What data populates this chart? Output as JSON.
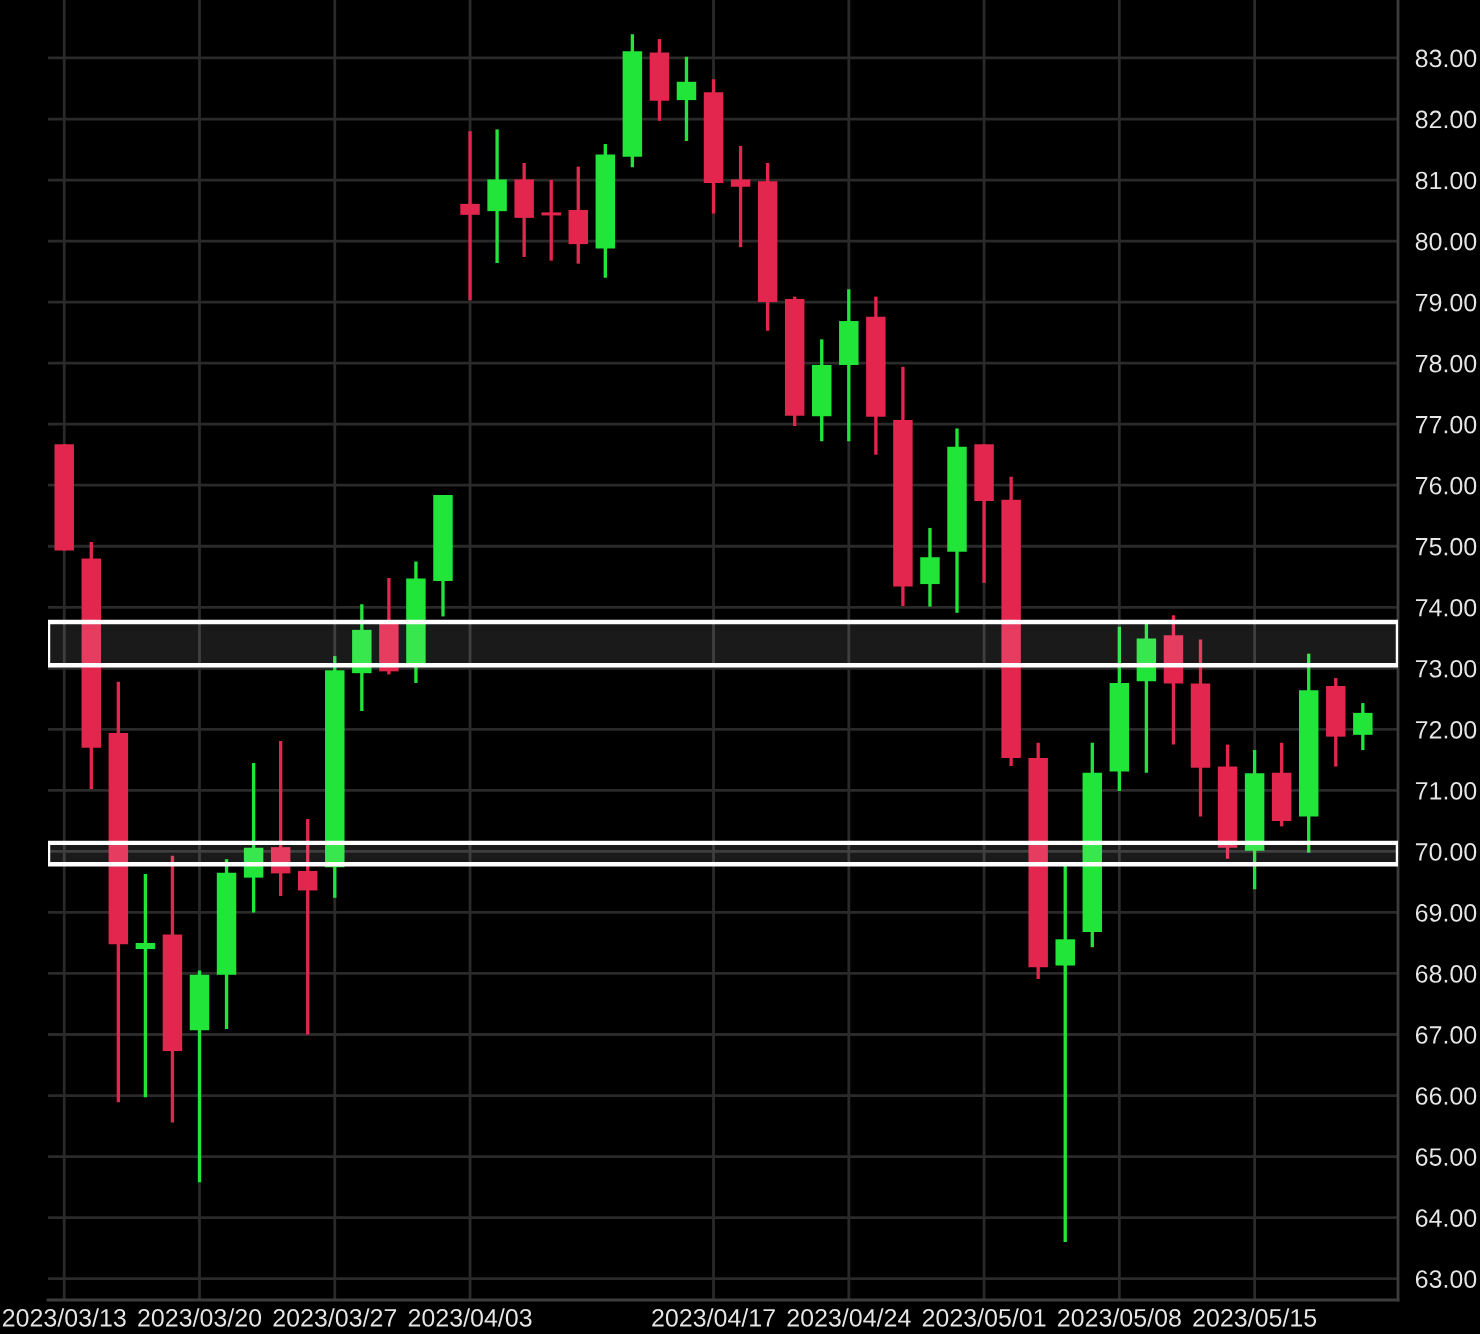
{
  "chart_data": {
    "type": "candlestick",
    "categories": [
      "2023/03/13",
      null,
      null,
      null,
      null,
      "2023/03/20",
      null,
      null,
      null,
      null,
      "2023/03/27",
      null,
      null,
      null,
      null,
      "2023/04/03",
      null,
      null,
      null,
      null,
      null,
      null,
      null,
      null,
      "2023/04/17",
      null,
      null,
      null,
      null,
      "2023/04/24",
      null,
      null,
      null,
      null,
      "2023/05/01",
      null,
      null,
      null,
      null,
      "2023/05/08",
      null,
      null,
      null,
      null,
      "2023/05/15",
      null,
      null,
      null,
      null
    ],
    "ohlc": [
      [
        76.67,
        76.67,
        74.93,
        74.93
      ],
      [
        74.8,
        75.07,
        71.02,
        71.7
      ],
      [
        71.94,
        72.78,
        65.89,
        68.48
      ],
      [
        68.4,
        69.63,
        65.97,
        68.5
      ],
      [
        68.64,
        69.93,
        65.56,
        66.73
      ],
      [
        67.07,
        68.05,
        64.58,
        67.98
      ],
      [
        67.98,
        69.87,
        67.09,
        69.65
      ],
      [
        69.57,
        71.45,
        69.0,
        70.06
      ],
      [
        70.07,
        71.81,
        69.27,
        69.64
      ],
      [
        69.68,
        70.53,
        67.0,
        69.36
      ],
      [
        69.74,
        73.2,
        69.24,
        72.97
      ],
      [
        72.92,
        74.05,
        72.3,
        73.63
      ],
      [
        73.73,
        74.48,
        72.9,
        72.95
      ],
      [
        73.06,
        74.75,
        72.76,
        74.47
      ],
      [
        74.43,
        75.84,
        73.85,
        75.84
      ],
      [
        80.61,
        81.8,
        79.03,
        80.43
      ],
      [
        80.49,
        81.83,
        79.64,
        81.01
      ],
      [
        81.01,
        81.28,
        79.74,
        80.38
      ],
      [
        80.47,
        81.0,
        79.68,
        80.42
      ],
      [
        80.51,
        81.22,
        79.63,
        79.95
      ],
      [
        79.88,
        81.59,
        79.4,
        81.42
      ],
      [
        81.38,
        83.39,
        81.21,
        83.11
      ],
      [
        83.09,
        83.31,
        81.97,
        82.3
      ],
      [
        82.31,
        83.02,
        81.64,
        82.61
      ],
      [
        82.44,
        82.65,
        80.45,
        80.95
      ],
      [
        81.01,
        81.56,
        79.9,
        80.89
      ],
      [
        80.98,
        81.28,
        78.53,
        79.0
      ],
      [
        79.05,
        79.09,
        76.97,
        77.14
      ],
      [
        77.13,
        78.39,
        76.72,
        77.97
      ],
      [
        77.97,
        79.21,
        76.72,
        78.69
      ],
      [
        78.76,
        79.09,
        76.5,
        77.12
      ],
      [
        77.07,
        77.94,
        74.02,
        74.34
      ],
      [
        74.38,
        75.3,
        74.01,
        74.82
      ],
      [
        74.91,
        76.93,
        73.91,
        76.63
      ],
      [
        76.67,
        76.67,
        74.4,
        75.74
      ],
      [
        75.76,
        76.14,
        71.4,
        71.53
      ],
      [
        71.53,
        71.78,
        67.91,
        68.1
      ],
      [
        68.13,
        69.81,
        63.6,
        68.56
      ],
      [
        68.68,
        71.78,
        68.43,
        71.29
      ],
      [
        71.31,
        73.68,
        70.99,
        72.76
      ],
      [
        72.79,
        73.73,
        71.29,
        73.49
      ],
      [
        73.54,
        73.87,
        71.75,
        72.75
      ],
      [
        72.75,
        73.47,
        70.57,
        71.37
      ],
      [
        71.39,
        71.75,
        69.88,
        70.06
      ],
      [
        70.01,
        71.66,
        69.38,
        71.28
      ],
      [
        71.29,
        71.78,
        70.41,
        70.5
      ],
      [
        70.57,
        73.24,
        69.98,
        72.64
      ],
      [
        72.71,
        72.84,
        71.39,
        71.88
      ],
      [
        71.91,
        72.43,
        71.66,
        72.27
      ]
    ],
    "colors": [
      "#e2264e",
      "#e2264e",
      "#e2264e",
      "#22e53a",
      "#e2264e",
      "#22e53a",
      "#22e53a",
      "#22e53a",
      "#e2264e",
      "#e2264e",
      "#22e53a",
      "#22e53a",
      "#e2264e",
      "#22e53a",
      "#22e53a",
      "#e2264e",
      "#22e53a",
      "#e2264e",
      "#e2264e",
      "#e2264e",
      "#22e53a",
      "#22e53a",
      "#e2264e",
      "#22e53a",
      "#e2264e",
      "#e2264e",
      "#e2264e",
      "#e2264e",
      "#22e53a",
      "#22e53a",
      "#e2264e",
      "#e2264e",
      "#22e53a",
      "#22e53a",
      "#e2264e",
      "#e2264e",
      "#e2264e",
      "#22e53a",
      "#22e53a",
      "#22e53a",
      "#22e53a",
      "#e2264e",
      "#e2264e",
      "#e2264e",
      "#22e53a",
      "#e2264e",
      "#22e53a",
      "#e2264e",
      "#22e53a"
    ],
    "ylim": [
      62.65,
      83.95
    ],
    "yticks": [
      {
        "value": 63,
        "label": "63.00"
      },
      {
        "value": 64,
        "label": "64.00"
      },
      {
        "value": 65,
        "label": "65.00"
      },
      {
        "value": 66,
        "label": "66.00"
      },
      {
        "value": 67,
        "label": "67.00"
      },
      {
        "value": 68,
        "label": "68.00"
      },
      {
        "value": 69,
        "label": "69.00"
      },
      {
        "value": 70,
        "label": "70.00"
      },
      {
        "value": 71,
        "label": "71.00"
      },
      {
        "value": 72,
        "label": "72.00"
      },
      {
        "value": 73,
        "label": "73.00"
      },
      {
        "value": 74,
        "label": "74.00"
      },
      {
        "value": 75,
        "label": "75.00"
      },
      {
        "value": 76,
        "label": "76.00"
      },
      {
        "value": 77,
        "label": "77.00"
      },
      {
        "value": 78,
        "label": "78.00"
      },
      {
        "value": 79,
        "label": "79.00"
      },
      {
        "value": 80,
        "label": "80.00"
      },
      {
        "value": 81,
        "label": "81.00"
      },
      {
        "value": 82,
        "label": "82.00"
      },
      {
        "value": 83,
        "label": "83.00"
      }
    ],
    "bands": [
      {
        "axis": "y",
        "from": 73.05,
        "to": 73.76,
        "color": "#ffffff"
      },
      {
        "axis": "y",
        "from": 69.79,
        "to": 70.14,
        "color": "#ffffff"
      }
    ],
    "grid": true
  }
}
